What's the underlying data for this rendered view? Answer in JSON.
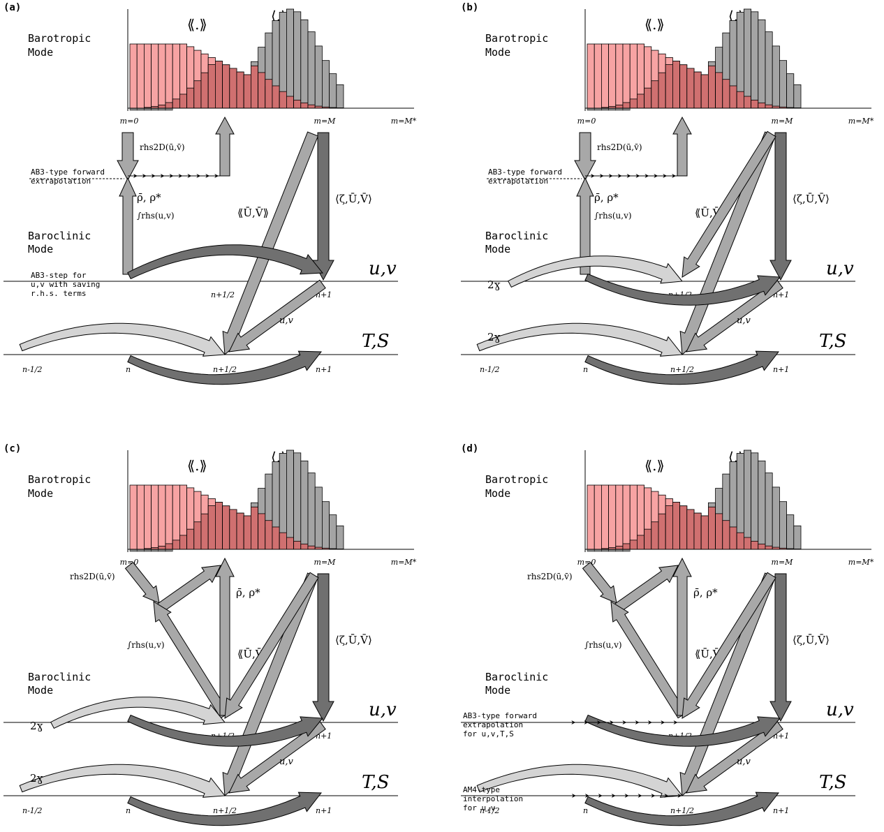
{
  "colors": {
    "pink": "#f7a3a3",
    "red": "#d07070",
    "gray": "#a4a4a4",
    "arrow_light": "#d4d4d4",
    "arrow_mid": "#a8a8a8",
    "arrow_dark": "#707070"
  },
  "labels": {
    "barotropic_1": "Barotropic",
    "barotropic_2": "Mode",
    "baroclinic_1": "Baroclinic",
    "baroclinic_2": "Mode",
    "avg_double": "⟪.⟫",
    "avg_single": "⟨.⟩",
    "m0": "m=0",
    "mM": "m=M",
    "mMstar": "m=M*",
    "uv": "u,v",
    "TS": "T,S",
    "n_minus_half": "n-1/2",
    "n": "n",
    "n_plus_half": "n+1/2",
    "n_plus_1": "n+1",
    "uv_small": "u,v",
    "two_gamma": "2ɣ",
    "rhs2D": "rhs2D(ū,v̄)",
    "rho_bar": "ρ̄, ρ*",
    "int_rhs": "∫rhs(u,v)",
    "UV_double": "⟪Ū,V̄⟫",
    "zeta_UV": "⟨ζ,Ū,V̄⟩",
    "ab3_forward_1": "AB3-type forward",
    "ab3_forward_2": "extrapolation",
    "ab3_step_1": "AB3-step for",
    "ab3_step_2": "u,v with saving",
    "ab3_step_3": "r.h.s. terms",
    "ab3_uvts_1": "AB3-type forward",
    "ab3_uvts_2": "extrapolation",
    "ab3_uvts_3": "for u,v,T,S",
    "am4_1": "AM4-type",
    "am4_2": "interpolation",
    "am4_3": "for u,v"
  },
  "panels": [
    {
      "tag": "(a)"
    },
    {
      "tag": "(b)"
    },
    {
      "tag": "(c)"
    },
    {
      "tag": "(d)"
    }
  ]
}
